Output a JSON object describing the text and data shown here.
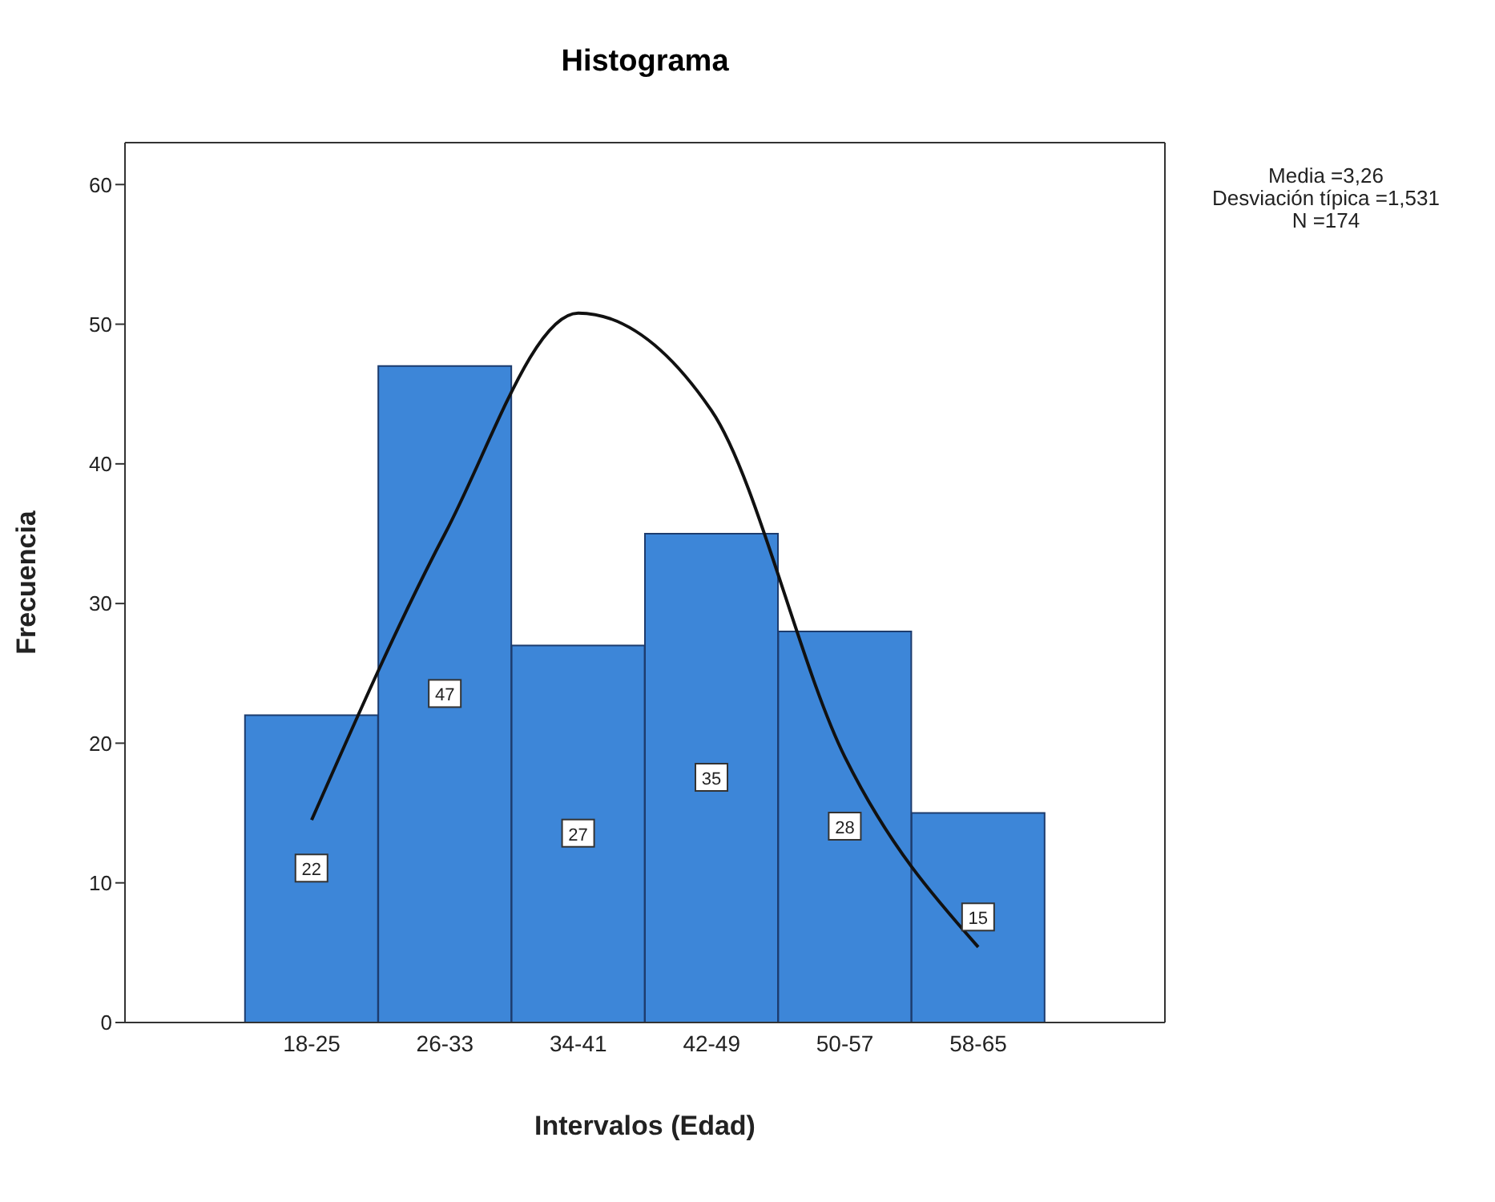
{
  "chart_data": {
    "type": "bar",
    "title": "Histograma",
    "xlabel": "Intervalos (Edad)",
    "ylabel": "Frecuencia",
    "annotations": [
      "Media =3,26",
      "Desviación típica =1,531",
      "N =174"
    ],
    "categories": [
      "18-25",
      "26-33",
      "34-41",
      "42-49",
      "50-57",
      "58-65"
    ],
    "ylim": [
      0,
      63
    ],
    "yticks": [
      0,
      10,
      20,
      30,
      40,
      50,
      60
    ],
    "series": [
      {
        "color": "#3d86d8",
        "values": [
          22,
          47,
          27,
          35,
          28,
          15
        ],
        "value_labels": [
          "22",
          "47",
          "27",
          "35",
          "28",
          "15"
        ]
      },
      {
        "type": "line",
        "color": "#111111",
        "values": [
          14.5,
          35,
          50.8,
          43.8,
          19,
          5.4
        ]
      }
    ],
    "grid": false,
    "legend": false,
    "marker": "none",
    "line_style": "solid"
  }
}
